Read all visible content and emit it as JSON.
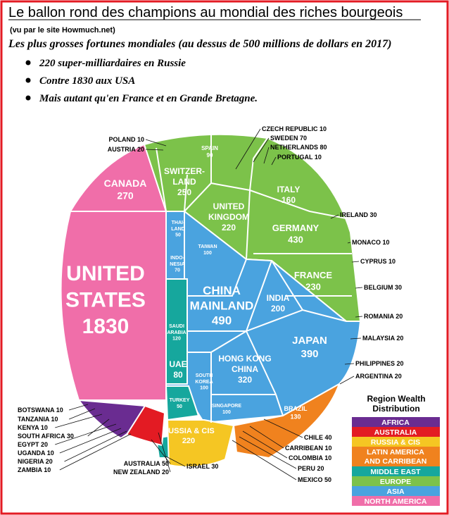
{
  "header": {
    "title": "Le ballon rond des champions au mondial des riches bourgeois",
    "source": "(vu par le site Howmuch.net)",
    "heading": "Les plus grosses fortunes mondiales (au dessus de 500 millions de dollars en 2017)",
    "bullets": [
      "220 super-milliardaires en Russie",
      "Contre 1830 aux USA",
      "Mais autant qu'en France et en Grande Bretagne."
    ]
  },
  "legend": {
    "title": [
      "Region Wealth",
      "Distribution"
    ],
    "regions": [
      {
        "name": [
          "AFRICA"
        ],
        "color": "#6a2c91"
      },
      {
        "name": [
          "AUSTRALIA"
        ],
        "color": "#e31b23"
      },
      {
        "name": [
          "RUSSIA & CIS"
        ],
        "color": "#f5c623"
      },
      {
        "name": [
          "LATIN AMERICA",
          "AND CARRIBEAN"
        ],
        "color": "#f0821e"
      },
      {
        "name": [
          "MIDDLE EAST"
        ],
        "color": "#16a79d"
      },
      {
        "name": [
          "EUROPE"
        ],
        "color": "#7cc24a"
      },
      {
        "name": [
          "ASIA"
        ],
        "color": "#4aa3df"
      },
      {
        "name": [
          "NORTH AMERICA"
        ],
        "color": "#f06ea9"
      }
    ]
  },
  "cells": [
    {
      "label": [
        "CANADA"
      ],
      "value": 270
    },
    {
      "label": [
        "UNITED",
        "STATES"
      ],
      "value": 1830
    },
    {
      "label": [
        "SWITZER-",
        "LAND"
      ],
      "value": 250
    },
    {
      "label": [
        "SPAIN"
      ],
      "value": 90
    },
    {
      "label": [
        "UNITED",
        "KINGDOM"
      ],
      "value": 220
    },
    {
      "label": [
        "ITALY"
      ],
      "value": 160
    },
    {
      "label": [
        "GERMANY"
      ],
      "value": 430
    },
    {
      "label": [
        "FRANCE"
      ],
      "value": 230
    },
    {
      "label": [
        "THAI-",
        "LAND"
      ],
      "value": 50
    },
    {
      "label": [
        "TAIWAN"
      ],
      "value": 100
    },
    {
      "label": [
        "INDO-",
        "NESIA"
      ],
      "value": 70
    },
    {
      "label": [
        "CHINA",
        "MAINLAND"
      ],
      "value": 490
    },
    {
      "label": [
        "INDIA"
      ],
      "value": 200
    },
    {
      "label": [
        "SAUDI",
        "ARABIA"
      ],
      "value": 120
    },
    {
      "label": [
        "UAE"
      ],
      "value": 80
    },
    {
      "label": [
        "SOUTH",
        "KOREA"
      ],
      "value": 100
    },
    {
      "label": [
        "HONG KONG",
        "CHINA"
      ],
      "value": 320
    },
    {
      "label": [
        "JAPAN"
      ],
      "value": 390
    },
    {
      "label": [
        "TURKEY"
      ],
      "value": 50
    },
    {
      "label": [
        "SINGAPORE"
      ],
      "value": 100
    },
    {
      "label": [
        "RUSSIA & CIS"
      ],
      "value": 220
    },
    {
      "label": [
        "BRAZIL"
      ],
      "value": 130
    }
  ],
  "callouts": [
    {
      "name": "POLAND",
      "value": 10
    },
    {
      "name": "AUSTRIA",
      "value": 20
    },
    {
      "name": "CZECH REPUBLIC",
      "value": 10
    },
    {
      "name": "SWEDEN",
      "value": 70
    },
    {
      "name": "NETHERLANDS",
      "value": 80
    },
    {
      "name": "PORTUGAL",
      "value": 10
    },
    {
      "name": "IRELAND",
      "value": 30
    },
    {
      "name": "MONACO",
      "value": 10
    },
    {
      "name": "CYPRUS",
      "value": 10
    },
    {
      "name": "BELGIUM",
      "value": 30
    },
    {
      "name": "ROMANIA",
      "value": 20
    },
    {
      "name": "MALAYSIA",
      "value": 20
    },
    {
      "name": "PHILIPPINES",
      "value": 20
    },
    {
      "name": "ARGENTINA",
      "value": 20
    },
    {
      "name": "CHILE",
      "value": 40
    },
    {
      "name": "CARRIBEAN",
      "value": 10
    },
    {
      "name": "COLOMBIA",
      "value": 10
    },
    {
      "name": "PERU",
      "value": 20
    },
    {
      "name": "MEXICO",
      "value": 50
    },
    {
      "name": "ISRAEL",
      "value": 30
    },
    {
      "name": "AUSTRALIA",
      "value": 50
    },
    {
      "name": "NEW ZEALAND",
      "value": 20
    },
    {
      "name": "BOTSWANA",
      "value": 10
    },
    {
      "name": "TANZANIA",
      "value": 10
    },
    {
      "name": "KENYA",
      "value": 10
    },
    {
      "name": "SOUTH AFRICA",
      "value": 30
    },
    {
      "name": "EGYPT",
      "value": 20
    },
    {
      "name": "UGANDA",
      "value": 10
    },
    {
      "name": "NIGERIA",
      "value": 20
    },
    {
      "name": "ZAMBIA",
      "value": 10
    }
  ]
}
